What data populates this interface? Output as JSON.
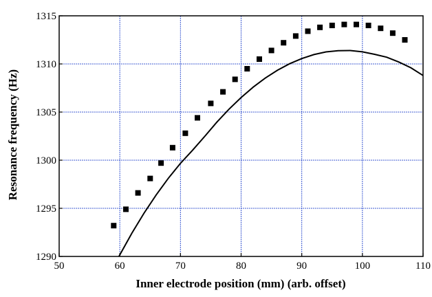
{
  "chart_data": {
    "type": "scatter",
    "title": "",
    "xlabel": "Inner electrode position (mm) (arb. offset)",
    "ylabel": "Resonance frequency (Hz)",
    "xlim": [
      50,
      110
    ],
    "ylim": [
      1290,
      1315
    ],
    "x_ticks": [
      "50",
      "60",
      "70",
      "80",
      "90",
      "100",
      "110"
    ],
    "y_ticks": [
      "1290",
      "1295",
      "1300",
      "1305",
      "1310",
      "1315"
    ],
    "grid": true,
    "legend": "none",
    "colors": {
      "grid": "#3c5ad2",
      "markers": "#000000",
      "fit_line": "#000000"
    },
    "series": [
      {
        "kind": "markers",
        "marker": "square",
        "points": [
          [
            59,
            1293.2
          ],
          [
            61,
            1294.9
          ],
          [
            63,
            1296.6
          ],
          [
            65,
            1298.1
          ],
          [
            66.8,
            1299.7
          ],
          [
            68.7,
            1301.3
          ],
          [
            70.8,
            1302.8
          ],
          [
            72.8,
            1304.4
          ],
          [
            75,
            1305.9
          ],
          [
            77,
            1307.1
          ],
          [
            79,
            1308.4
          ],
          [
            81,
            1309.5
          ],
          [
            83,
            1310.5
          ],
          [
            85,
            1311.4
          ],
          [
            87,
            1312.2
          ],
          [
            89,
            1312.9
          ],
          [
            91,
            1313.4
          ],
          [
            93,
            1313.8
          ],
          [
            95,
            1314.0
          ],
          [
            97,
            1314.1
          ],
          [
            99,
            1314.1
          ],
          [
            101,
            1314.0
          ],
          [
            103,
            1313.7
          ],
          [
            105,
            1313.2
          ],
          [
            107,
            1312.5
          ]
        ]
      },
      {
        "kind": "fit-line",
        "points": [
          [
            59.86,
            1290.0
          ],
          [
            60,
            1290.17
          ],
          [
            62,
            1292.43
          ],
          [
            64,
            1294.5
          ],
          [
            66,
            1296.4
          ],
          [
            68,
            1298.12
          ],
          [
            70,
            1299.67
          ],
          [
            72,
            1301.04
          ],
          [
            74,
            1302.47
          ],
          [
            76,
            1303.95
          ],
          [
            78,
            1305.3
          ],
          [
            80,
            1306.51
          ],
          [
            82,
            1307.59
          ],
          [
            84,
            1308.54
          ],
          [
            86,
            1309.35
          ],
          [
            88,
            1310.02
          ],
          [
            90,
            1310.56
          ],
          [
            92,
            1310.97
          ],
          [
            94,
            1311.25
          ],
          [
            96,
            1311.38
          ],
          [
            98,
            1311.39
          ],
          [
            100,
            1311.26
          ],
          [
            102,
            1311.0
          ],
          [
            104,
            1310.7
          ],
          [
            106,
            1310.2
          ],
          [
            108,
            1309.6
          ],
          [
            110,
            1308.8
          ]
        ]
      }
    ]
  }
}
